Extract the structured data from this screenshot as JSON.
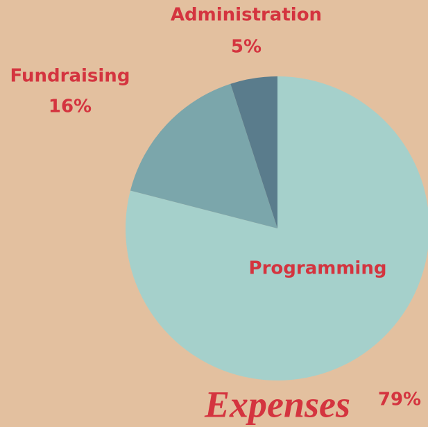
{
  "chart_data": {
    "type": "pie",
    "title": "Expenses",
    "categories": [
      "Programming",
      "Fundraising",
      "Administration"
    ],
    "values": [
      79,
      16,
      5
    ],
    "value_labels": [
      "79%",
      "16%",
      "5%"
    ],
    "colors": [
      "#a5d0cb",
      "#7ba6ab",
      "#5a7c8c"
    ]
  }
}
